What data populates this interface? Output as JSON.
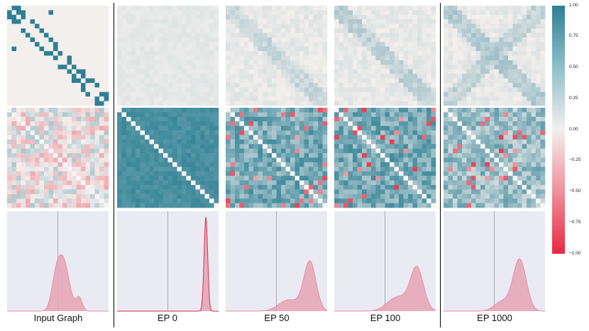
{
  "column_labels": [
    "Input Graph",
    "EP 0",
    "EP 50",
    "EP 100",
    "EP 1000"
  ],
  "colorbar": {
    "ticks": [
      "1.00",
      "0.75",
      "0.50",
      "0.25",
      "0.00",
      "−0.25",
      "−0.50",
      "−0.75",
      "−1.00"
    ],
    "range": [
      -1,
      1
    ],
    "colors": {
      "positive": "#2d8094",
      "neutral": "#f3efed",
      "negative": "#e8283f"
    }
  },
  "chart_data": {
    "type": "heatmap",
    "layout": "grid 3 rows x 5 columns",
    "columns": [
      "Input Graph",
      "EP 0",
      "EP 50",
      "EP 100",
      "EP 1000"
    ],
    "rows": [
      "adjacency / similarity matrix",
      "correlation matrix",
      "density plot"
    ],
    "matrix_size": 22,
    "value_range": [
      -1,
      1
    ],
    "row1_similarity": {
      "Input Graph": {
        "structure": "band/diagonal adjacency (binary 0/1) with a few off-diagonal ones",
        "values": [
          0,
          1
        ]
      },
      "EP 0": {
        "structure": "near-uniform low values",
        "approx_range": [
          0.02,
          0.1
        ]
      },
      "EP 50": {
        "structure": "faint band structure",
        "approx_range": [
          0.0,
          0.35
        ]
      },
      "EP 100": {
        "structure": "faint band structure, slightly stronger",
        "approx_range": [
          0.0,
          0.4
        ]
      },
      "EP 1000": {
        "structure": "faint X-shaped band structure",
        "approx_range": [
          0.0,
          0.5
        ]
      }
    },
    "row2_correlation": {
      "Input Graph": {
        "structure": "mixed weak positive/negative",
        "approx_range": [
          -0.35,
          0.35
        ]
      },
      "EP 0": {
        "structure": "uniformly high positive, white diagonal",
        "approx_range": [
          0.8,
          0.95
        ]
      },
      "EP 50": {
        "structure": "mostly positive with scattered negatives",
        "approx_range": [
          -0.9,
          0.95
        ]
      },
      "EP 100": {
        "structure": "mostly positive with scattered negatives",
        "approx_range": [
          -0.9,
          0.95
        ]
      },
      "EP 1000": {
        "structure": "moderate positive with scattered negatives",
        "approx_range": [
          -0.9,
          0.8
        ]
      }
    },
    "row3_density": {
      "x_range": [
        -1,
        1
      ],
      "reference_line_x": 0,
      "series": [
        {
          "column": "Input Graph",
          "peaks": [
            {
              "x": 0.1,
              "height": 0.55,
              "width": 0.12
            },
            {
              "x": 0.42,
              "height": 0.14,
              "width": 0.06
            },
            {
              "x": -0.05,
              "height": 0.2,
              "width": 0.08
            }
          ]
        },
        {
          "column": "EP 0",
          "peaks": [
            {
              "x": 0.75,
              "height": 1.0,
              "width": 0.035
            }
          ]
        },
        {
          "column": "EP 50",
          "peaks": [
            {
              "x": 0.66,
              "height": 0.52,
              "width": 0.12
            },
            {
              "x": 0.25,
              "height": 0.12,
              "width": 0.2
            }
          ]
        },
        {
          "column": "EP 100",
          "peaks": [
            {
              "x": 0.63,
              "height": 0.45,
              "width": 0.13
            },
            {
              "x": 0.25,
              "height": 0.15,
              "width": 0.2
            }
          ]
        },
        {
          "column": "EP 1000",
          "peaks": [
            {
              "x": 0.5,
              "height": 0.55,
              "width": 0.13
            },
            {
              "x": 0.15,
              "height": 0.1,
              "width": 0.15
            }
          ]
        }
      ]
    }
  }
}
